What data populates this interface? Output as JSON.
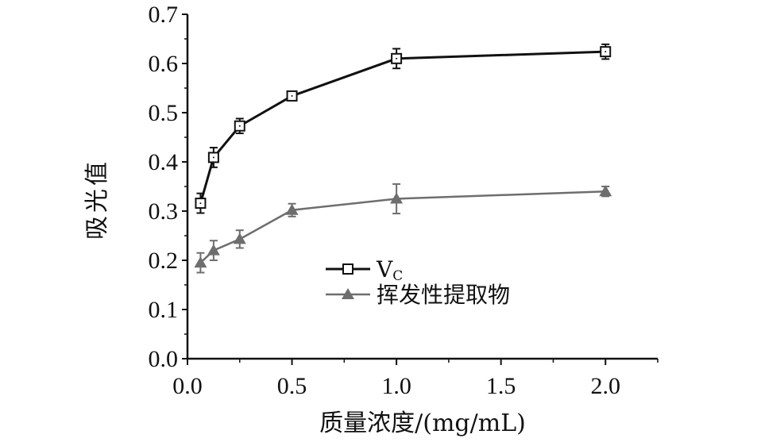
{
  "chart_data": {
    "type": "line",
    "title": "",
    "xlabel": "质量浓度/(mg/mL)",
    "ylabel": "吸光值",
    "xlim": [
      0,
      2.25
    ],
    "ylim": [
      0,
      0.7
    ],
    "xticks": [
      0.0,
      0.5,
      1.0,
      1.5,
      2.0
    ],
    "xtick_labels": [
      "0.0",
      "0.5",
      "1.0",
      "1.5",
      "2.0"
    ],
    "yticks": [
      0.0,
      0.1,
      0.2,
      0.3,
      0.4,
      0.5,
      0.6,
      0.7
    ],
    "ytick_labels": [
      "0.0",
      "0.1",
      "0.2",
      "0.3",
      "0.4",
      "0.5",
      "0.6",
      "0.7"
    ],
    "grid": false,
    "legend_position": "center",
    "series": [
      {
        "name": "VC",
        "name_main": "V",
        "name_sub": "C",
        "marker": "open-square",
        "color": "#111111",
        "x": [
          0.0625,
          0.125,
          0.25,
          0.5,
          1.0,
          2.0
        ],
        "y": [
          0.316,
          0.409,
          0.473,
          0.534,
          0.61,
          0.624
        ],
        "err": [
          0.02,
          0.02,
          0.015,
          0.008,
          0.02,
          0.015
        ]
      },
      {
        "name": "挥发性提取物",
        "marker": "filled-triangle",
        "color": "#6e6e6e",
        "x": [
          0.0625,
          0.125,
          0.25,
          0.5,
          1.0,
          2.0
        ],
        "y": [
          0.195,
          0.22,
          0.243,
          0.302,
          0.325,
          0.34
        ],
        "err": [
          0.02,
          0.02,
          0.018,
          0.013,
          0.03,
          0.01
        ]
      }
    ]
  }
}
